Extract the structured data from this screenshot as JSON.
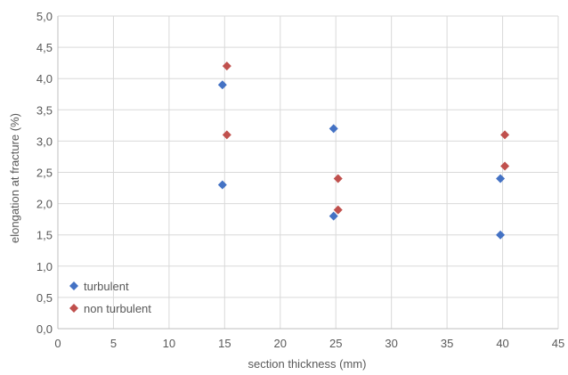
{
  "chart_data": {
    "type": "scatter",
    "title": "",
    "xlabel": "section thickness (mm)",
    "ylabel": "elongation at fracture (%)",
    "xlim": [
      0,
      45
    ],
    "ylim": [
      0,
      5
    ],
    "x_ticks": [
      "0",
      "5",
      "10",
      "15",
      "20",
      "25",
      "30",
      "35",
      "40",
      "45"
    ],
    "y_ticks": [
      "0,0",
      "0,5",
      "1,0",
      "1,5",
      "2,0",
      "2,5",
      "3,0",
      "3,5",
      "4,0",
      "4,5",
      "5,0"
    ],
    "grid": "vertical and horizontal major gridlines",
    "legend_position": "bottom-left",
    "marker": "diamond",
    "series": [
      {
        "name": "turbulent",
        "color": "#4472c4",
        "points": [
          {
            "x": 14.8,
            "y": 3.9
          },
          {
            "x": 14.8,
            "y": 2.3
          },
          {
            "x": 24.8,
            "y": 3.2
          },
          {
            "x": 24.8,
            "y": 1.8
          },
          {
            "x": 39.8,
            "y": 2.4
          },
          {
            "x": 39.8,
            "y": 1.5
          }
        ]
      },
      {
        "name": "non turbulent",
        "color": "#c0504d",
        "points": [
          {
            "x": 15.2,
            "y": 4.2
          },
          {
            "x": 15.2,
            "y": 3.1
          },
          {
            "x": 25.2,
            "y": 2.4
          },
          {
            "x": 25.2,
            "y": 1.9
          },
          {
            "x": 40.2,
            "y": 3.1
          },
          {
            "x": 40.2,
            "y": 2.6
          }
        ]
      }
    ]
  }
}
